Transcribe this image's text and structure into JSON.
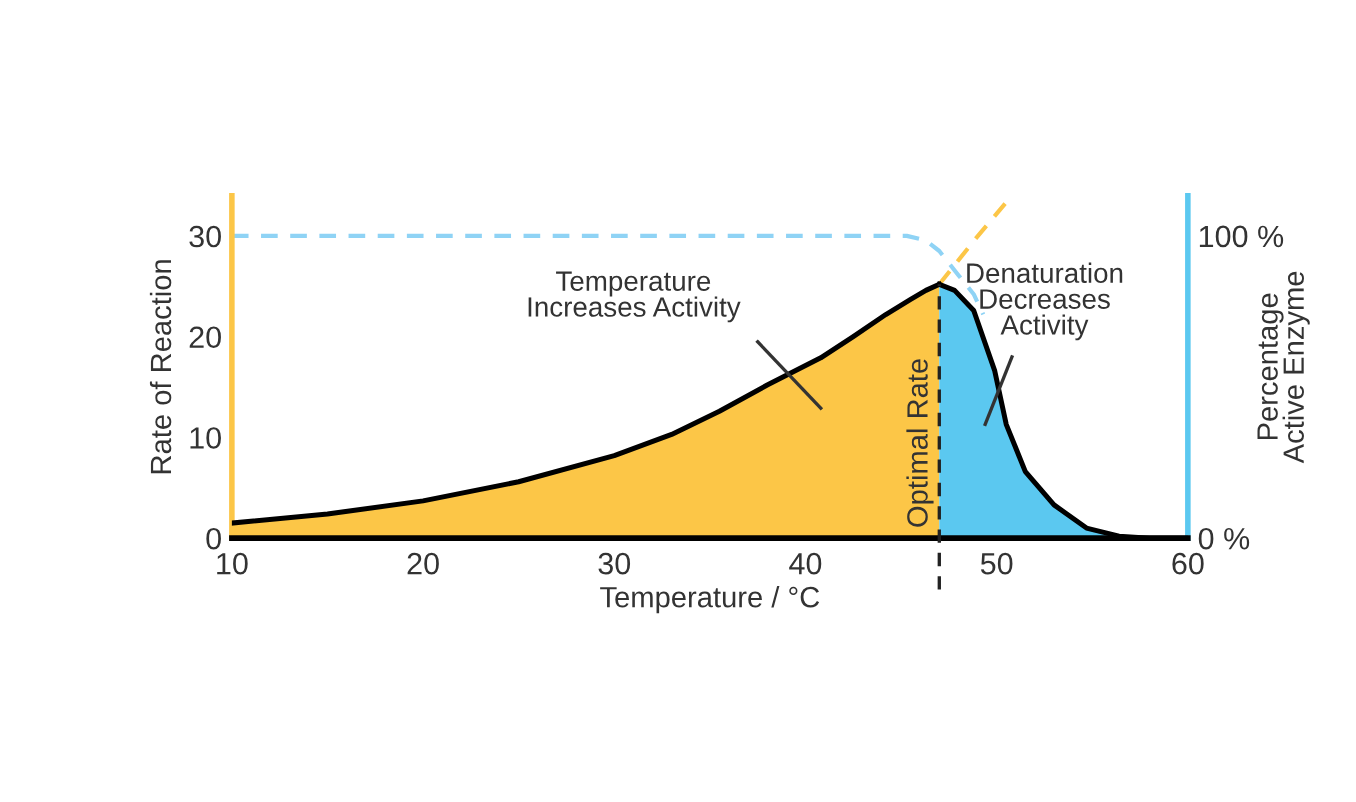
{
  "chart_data": {
    "type": "area",
    "xlabel": "Temperature / °C",
    "ylabel": "Rate of Reaction",
    "y2label": "Percentage\nActive Enzyme",
    "xlim": [
      10,
      60
    ],
    "xticks": [
      10,
      20,
      30,
      40,
      50,
      60
    ],
    "ylim": [
      0,
      34
    ],
    "yticks": [
      0,
      10,
      20,
      30
    ],
    "y2lim": [
      0,
      113.3
    ],
    "y2ticks": [
      {
        "value": 0,
        "label": "0 %"
      },
      {
        "value": 100,
        "label": "100 %"
      }
    ],
    "grid": false,
    "legend": false,
    "series": [
      {
        "color": "#fcc647",
        "x": [
          10,
          15,
          20,
          25,
          30,
          33,
          35.5,
          38,
          40.8,
          42.5,
          44.2,
          45.5,
          46.3,
          47
        ],
        "values": [
          1.5,
          2.4,
          3.7,
          5.6,
          8.2,
          10.3,
          12.6,
          15.2,
          17.9,
          20,
          22.2,
          23.7,
          24.6,
          25.2
        ]
      },
      {
        "color": "#5bc8f0",
        "x": [
          47,
          47.8,
          48.8,
          49.9,
          50.5,
          51.5,
          53,
          54.7,
          56.4,
          58,
          60
        ],
        "values": [
          25.2,
          24.6,
          22.6,
          16.6,
          11.3,
          6.6,
          3.3,
          1.0,
          0.2,
          0,
          0
        ]
      },
      {
        "type": "line",
        "line_style": "dashed",
        "color": "#fcc647",
        "x": [
          47,
          48.8,
          50.7
        ],
        "values": [
          25.2,
          29.5,
          33.8
        ]
      },
      {
        "type": "line",
        "line_style": "dashed",
        "axis": "y2",
        "color": "#8fd3f5",
        "x": [
          10,
          45.3,
          46.3,
          47,
          48,
          48.8,
          49.3
        ],
        "values": [
          100,
          100,
          98.5,
          95,
          87,
          80.7,
          74
        ]
      }
    ],
    "ref_lines": [
      {
        "axis": "x",
        "value": 47,
        "label": "Optimal Rate",
        "color": "#222222",
        "line_style": "dashed"
      }
    ],
    "annotations": [
      "Temperature\nIncreases Activity",
      "Denaturation\nDecreases\nActivity"
    ]
  }
}
